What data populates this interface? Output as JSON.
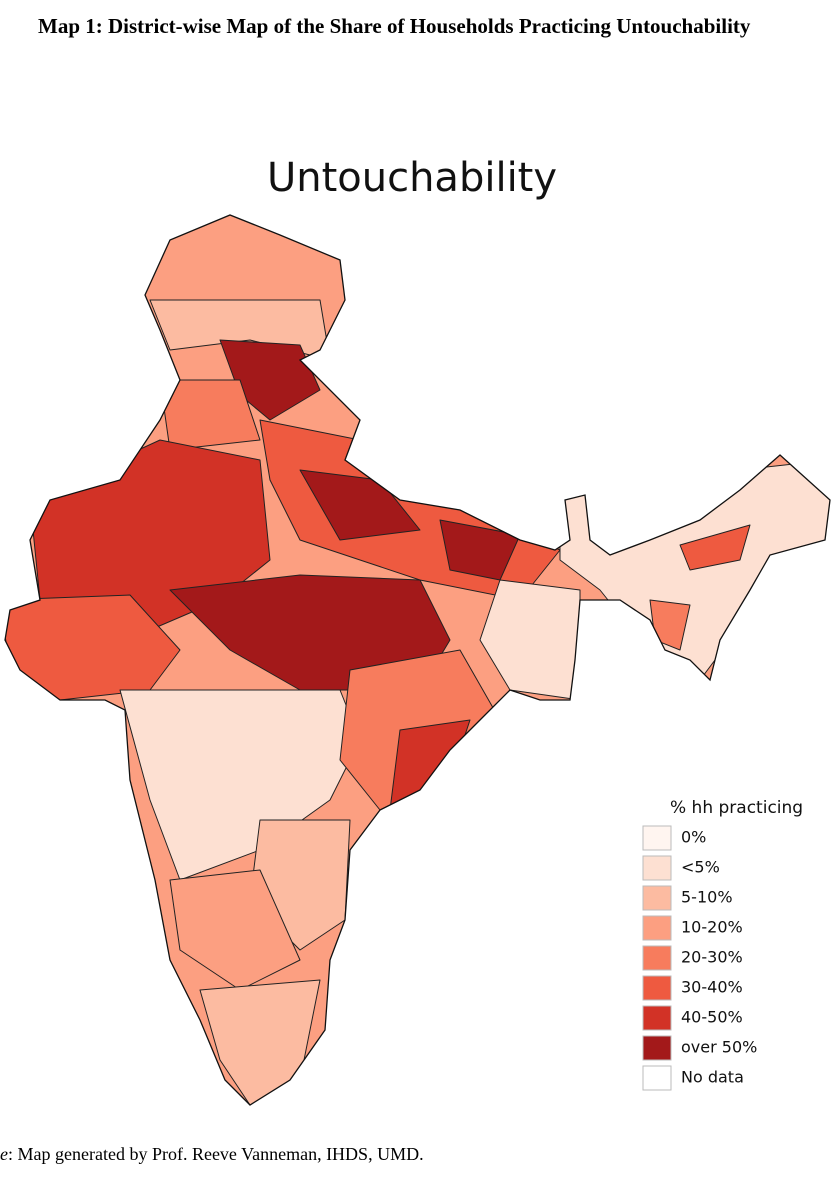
{
  "header": {
    "title": "Map 1: District-wise Map of the Share of Households Practicing Untouchability"
  },
  "map": {
    "title": "Untouchability",
    "legend": {
      "title": "% hh practicing",
      "items": [
        {
          "label": "0%",
          "color": "#fff5f0"
        },
        {
          "label": "<5%",
          "color": "#fde0d2"
        },
        {
          "label": "5-10%",
          "color": "#fcbba1"
        },
        {
          "label": "10-20%",
          "color": "#fc9f81"
        },
        {
          "label": "20-30%",
          "color": "#f77c5d"
        },
        {
          "label": "30-40%",
          "color": "#ee5a40"
        },
        {
          "label": "40-50%",
          "color": "#d23226"
        },
        {
          "label": "over 50%",
          "color": "#a3191a"
        },
        {
          "label": "No data",
          "color": "#ffffff"
        }
      ]
    }
  },
  "footer": {
    "prefix": "e",
    "text": ": Map generated by Prof. Reeve Vanneman, IHDS, UMD."
  }
}
